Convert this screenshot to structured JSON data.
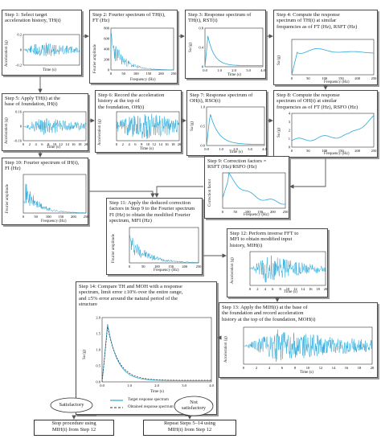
{
  "steps": {
    "s1": "Step 1: Select target\nacceleration history, TH(t)",
    "s2": "Step 2: Fourier spectrum of TH(t),\nFT (Hz)",
    "s3": "Step 3: Response spectrum of\nTH(t), RST(t)",
    "s4": "Step 4: Compute the response\nspectrum of TH(t) at similar\nfrequencies as of FT (Hz), RSFT (Hz)",
    "s5": "Step 5: Apply TH(t) at the\nbase of foundation, IH(t)",
    "s6": "Step 6: Record the acceleration\nhistory at the top of\nthe foundation, OH(t)",
    "s7": "Step 7: Response spectrum of\nOH(t), RSO(t)",
    "s8": "Step 8: Compute the response\nspectrum of OH(t) at similar\nfrequencies as of FT (Hz), RSFO (Hz)",
    "s9": "Step 9: Correction factors =\nRSFT (Hz)/RSFO (Hz)",
    "s10": "Step 10: Fourier spectrum of IH(t),\nFI (Hz)",
    "s11": "Step 11: Apply the deduced correction\nfactors in Step 9 to the Fourier spectrum\nFI (Hz) to obtain the modified Fourier\nspectrum, MFI (Hz)",
    "s12": "Step 12: Perform inverse FFT to\nMFI to obtain modified input\nhistory, MIH(t)",
    "s13": "Step 13: Apply the MIH(t) at the base of\nthe foundation and record acceleration\nhistory at the top of the foundation, MOH(t)",
    "s14": "Step 14: Compare TH and MOH with a response\nspectrum, limit error ±10% over the entire range,\nand ±5% error around the natural period of the\nstructure"
  },
  "axes": {
    "time": "Time (s)",
    "frequency": "Frequency (Hz)",
    "acceleration": "Acceleration (g)",
    "fourier_amplitude": "Fourier amplitude",
    "sa": "Sa (g)",
    "correction_factor": "Correction factor"
  },
  "legend": {
    "target": "Target response spectrum",
    "obtained": "Obtained response spectrum"
  },
  "ticks": {
    "s1_y": [
      "0.2",
      "0",
      "−0.2"
    ],
    "s1_x": [],
    "s2_y": [
      "800",
      "600",
      "400",
      "200",
      "0"
    ],
    "s2_x": [
      "0",
      "50",
      "100",
      "150",
      "200",
      "250"
    ],
    "s3_y": [
      "0.8",
      "0.4",
      "0"
    ],
    "s3_x": [
      "0.0",
      "1.0",
      "2.0",
      "3.0",
      "4.0"
    ],
    "s4_x": [
      "0",
      "50",
      "100",
      "150",
      "200",
      "250"
    ],
    "s5_y": [
      "0.16",
      "0",
      "−0.16"
    ],
    "s5_x": [
      "0",
      "2",
      "4",
      "6",
      "8",
      "10",
      "12",
      "14",
      "16",
      "18",
      "20"
    ],
    "s6_x": [
      "0",
      "2",
      "4",
      "6",
      "8",
      "10",
      "12",
      "14",
      "16",
      "18",
      "20"
    ],
    "s7_y": [
      "1.0",
      "0.5",
      "0.0"
    ],
    "s7_x": [
      "0.0",
      "1.0",
      "2.0",
      "3.0",
      "4.0"
    ],
    "s8_y": [
      "4",
      "3",
      "2",
      "1",
      "0"
    ],
    "s8_x": [
      "0",
      "50",
      "100",
      "150",
      "200",
      "250"
    ],
    "s10_x": [
      "0",
      "50",
      "100",
      "150",
      "200",
      "250"
    ],
    "s9_x": [
      "0",
      "50",
      "100",
      "150",
      "200",
      "250"
    ],
    "s11_x": [
      "0",
      "50",
      "100",
      "150",
      "200",
      "250"
    ],
    "s12_x": [
      "0",
      "2",
      "4",
      "6",
      "8",
      "10",
      "12",
      "14",
      "16",
      "18",
      "20"
    ],
    "s13_x": [
      "0",
      "2",
      "4",
      "6",
      "8",
      "10",
      "12",
      "14",
      "16",
      "18",
      "20"
    ],
    "s14_y": [
      "2.0",
      "1.5",
      "1.0",
      "0.5",
      "0.0"
    ],
    "s14_x": [
      "0.0",
      "1.0",
      "2.0",
      "3.0",
      "4.0"
    ]
  },
  "decisions": {
    "satisfactory": "Satisfactory",
    "not_satisfactory": "Not\nsatisfactory"
  },
  "terminals": {
    "stop": "Stop procedure using\nMIH(t) from Step 12",
    "repeat": "Repeat Steps 5–14 using\nMIH(t) from Step 12"
  },
  "colors": {
    "signal": "#2aa8d8",
    "arrow": "#555555"
  }
}
